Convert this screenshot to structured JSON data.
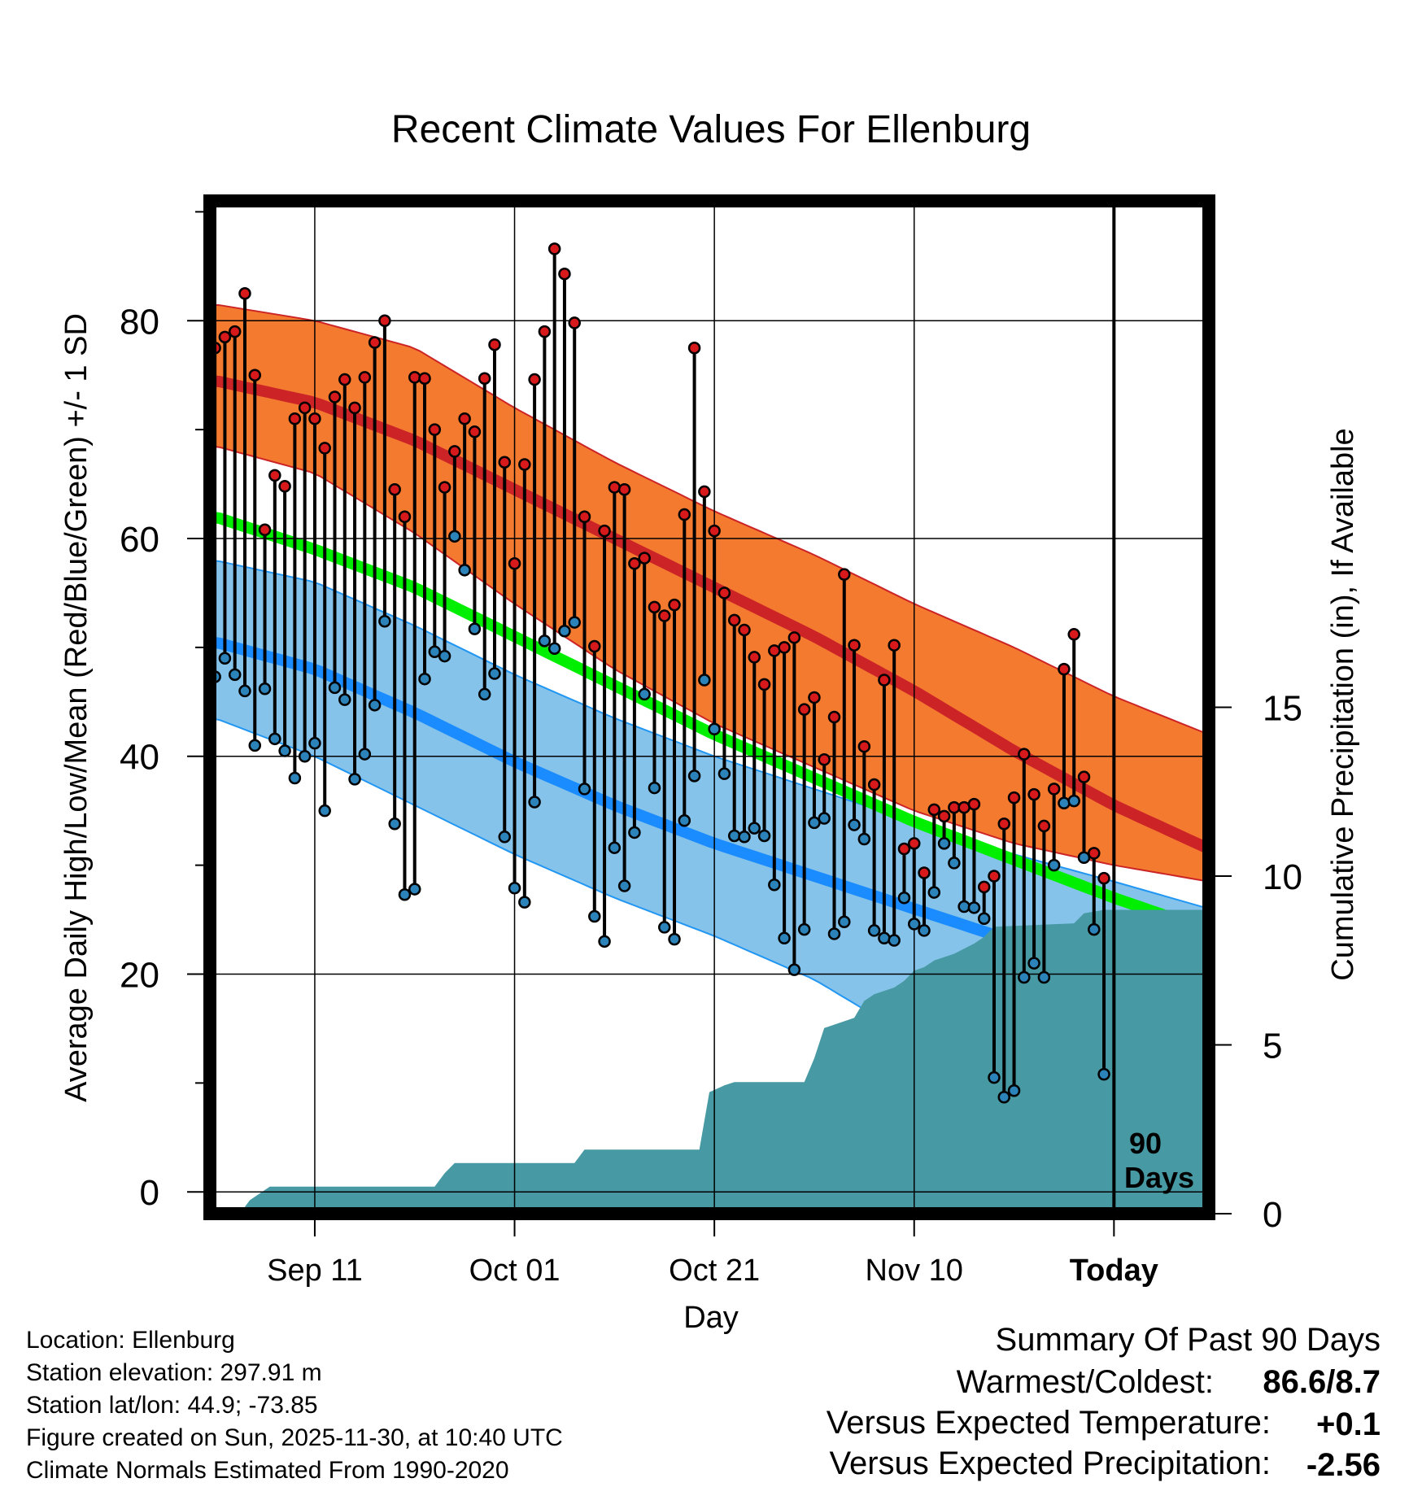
{
  "chart_data": {
    "type": "line",
    "title": "Recent Climate Values For Ellenburg",
    "xlabel": "Day",
    "ylabel": "Average Daily High/Low/Mean (Red/Blue/Green) +/- 1 SD",
    "y2label": "Cumulative Precipitation (in), If Available",
    "ylim": [
      -2,
      91
    ],
    "y2lim": [
      0,
      30
    ],
    "xlim": [
      -0.5,
      99.5
    ],
    "yticks": [
      0,
      20,
      40,
      60,
      80
    ],
    "y2ticks": [
      0,
      5,
      10,
      15
    ],
    "xticks": [
      {
        "day": 10,
        "label": "Sep 11"
      },
      {
        "day": 30,
        "label": "Oct 01"
      },
      {
        "day": 50,
        "label": "Oct 21"
      },
      {
        "day": 70,
        "label": "Nov 10"
      },
      {
        "day": 90,
        "label": "Today"
      }
    ],
    "today_label_1": "90",
    "today_label_2": "Days",
    "normals": {
      "days": [
        0,
        10,
        20,
        30,
        40,
        50,
        60,
        70,
        80,
        90,
        99.5
      ],
      "high_mean": [
        74.5,
        72.5,
        69.0,
        64.5,
        60.0,
        55.5,
        51.0,
        46.0,
        40.5,
        35.5,
        31.5
      ],
      "high_upper": [
        81.5,
        80.0,
        77.5,
        72.0,
        67.0,
        62.5,
        58.5,
        54.0,
        50.0,
        45.5,
        42.0
      ],
      "high_lower": [
        68.5,
        66.0,
        60.5,
        54.0,
        48.0,
        43.0,
        39.0,
        35.0,
        32.0,
        30.0,
        28.5
      ],
      "mean_mean": [
        62.0,
        59.0,
        55.5,
        51.0,
        46.5,
        42.0,
        38.0,
        34.0,
        30.5,
        27.0,
        24.0
      ],
      "low_mean": [
        50.5,
        48.0,
        44.0,
        39.5,
        35.5,
        32.0,
        29.0,
        26.0,
        23.0,
        19.5,
        16.0
      ],
      "low_upper": [
        58.0,
        56.0,
        52.0,
        47.5,
        43.5,
        40.0,
        37.0,
        34.0,
        31.0,
        28.5,
        26.0
      ],
      "low_lower": [
        43.5,
        40.0,
        35.5,
        31.0,
        27.0,
        23.5,
        19.5,
        14.0,
        8.0,
        2.0,
        -2.0
      ]
    },
    "highs": [
      77.5,
      78.5,
      79.0,
      82.5,
      75.0,
      60.8,
      65.8,
      64.8,
      71.0,
      72.0,
      71.0,
      68.3,
      73.0,
      74.6,
      72.0,
      74.8,
      78.0,
      80.0,
      64.5,
      62.0,
      74.8,
      74.7,
      70.0,
      64.7,
      68.0,
      71.0,
      69.8,
      74.7,
      77.8,
      67.0,
      57.7,
      66.8,
      74.6,
      79.0,
      86.6,
      84.3,
      79.8,
      62.0,
      50.1,
      60.7,
      64.7,
      64.5,
      57.7,
      58.2,
      53.7,
      52.9,
      53.9,
      62.2,
      77.5,
      64.3,
      60.7,
      55.0,
      52.5,
      51.6,
      49.1,
      46.6,
      49.7,
      50.0,
      50.9,
      44.3,
      45.4,
      39.7,
      43.6,
      56.7,
      50.2,
      40.9,
      37.4,
      47.0,
      50.2,
      31.5,
      32.0,
      29.3,
      35.1,
      34.5,
      35.3,
      35.3,
      35.6,
      28.0,
      29.0,
      33.8,
      36.2,
      40.2,
      36.5,
      33.6,
      37.0,
      48.0,
      51.2,
      38.1,
      31.1,
      28.8
    ],
    "lows": [
      47.3,
      49.0,
      47.5,
      46.0,
      41.0,
      46.2,
      41.6,
      40.5,
      38.0,
      40.0,
      41.2,
      35.0,
      46.3,
      45.2,
      37.9,
      40.2,
      44.7,
      52.4,
      33.8,
      27.3,
      27.8,
      47.1,
      49.6,
      49.2,
      60.2,
      57.1,
      51.7,
      45.7,
      47.6,
      32.6,
      27.9,
      26.6,
      35.8,
      50.6,
      49.9,
      51.5,
      52.3,
      37.0,
      25.3,
      23.0,
      31.6,
      28.1,
      33.0,
      45.7,
      37.1,
      24.3,
      23.2,
      34.1,
      38.2,
      47.0,
      42.5,
      38.4,
      32.7,
      32.6,
      33.4,
      32.7,
      28.2,
      23.3,
      20.4,
      24.1,
      33.9,
      34.3,
      23.7,
      24.8,
      33.7,
      32.4,
      24.0,
      23.3,
      23.1,
      27.0,
      24.6,
      24.0,
      27.5,
      32.0,
      30.2,
      26.2,
      26.1,
      25.1,
      10.5,
      8.7,
      9.3,
      19.7,
      21.0,
      19.7,
      30.0,
      35.7,
      35.9,
      30.7,
      24.1,
      10.8
    ],
    "precip": {
      "days": [
        2.5,
        3.5,
        5.5,
        22,
        23,
        24,
        25,
        36,
        37,
        48.5,
        49.5,
        51,
        52,
        59,
        60,
        61,
        62,
        64,
        65,
        66,
        67,
        68,
        69,
        70,
        71,
        72,
        74,
        76,
        77,
        78,
        86,
        87,
        88,
        89,
        99.5
      ],
      "values": [
        0.0,
        0.4,
        0.8,
        0.8,
        1.2,
        1.5,
        1.5,
        1.5,
        1.9,
        1.9,
        3.6,
        3.8,
        3.9,
        3.9,
        4.6,
        5.5,
        5.6,
        5.8,
        6.3,
        6.5,
        6.6,
        6.7,
        6.9,
        7.2,
        7.3,
        7.5,
        7.7,
        8.0,
        8.2,
        8.5,
        8.6,
        8.9,
        8.95,
        9.0,
        9.0
      ]
    },
    "series_colors": {
      "high_band": "#f47a30",
      "high_line": "#cc2426",
      "high_line_below": "#a11115",
      "mean_line": "#00ee00",
      "low_band": "#86c3ea",
      "low_line": "#1a8cff",
      "low_edge": "#2196f3",
      "precip": "#4799a3",
      "high_dot": "#d7191c",
      "low_dot": "#2b83ba"
    }
  },
  "footer": {
    "location": "Location: Ellenburg",
    "elevation": "Station elevation: 297.91 m",
    "latlon": "Station lat/lon: 44.9; -73.85",
    "created": "Figure created on Sun, 2025-11-30, at 10:40 UTC",
    "normals": "Climate Normals Estimated From 1990-2020"
  },
  "summary": {
    "heading": "Summary Of Past 90 Days",
    "warmest_label": "Warmest/Coldest:",
    "warmest_value": "86.6/8.7",
    "temp_label": "Versus Expected Temperature:",
    "temp_value": "+0.1",
    "temp_color": "#d7191c",
    "precip_label": "Versus Expected Precipitation:",
    "precip_value": "-2.56",
    "precip_color": "#a0522d"
  }
}
